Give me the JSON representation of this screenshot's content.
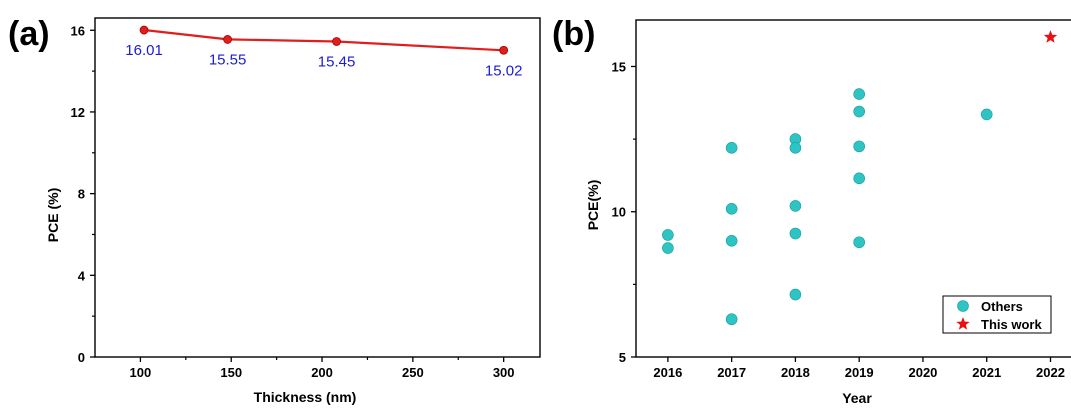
{
  "chart_data": [
    {
      "type": "line",
      "panel_label": "(a)",
      "xlabel": "Thickness (nm)",
      "ylabel": "PCE (%)",
      "xlim": [
        75,
        320
      ],
      "ylim": [
        0,
        16.6
      ],
      "xticks": [
        100,
        150,
        200,
        250,
        300
      ],
      "yticks": [
        0,
        4,
        8,
        12,
        16
      ],
      "grid": false,
      "color": "#e01e1e",
      "label_color": "#1b1bd6",
      "series": [
        {
          "x": [
            102,
            148,
            208,
            300
          ],
          "values": [
            16.01,
            15.55,
            15.45,
            15.02
          ],
          "data_labels": [
            "16.01",
            "15.55",
            "15.45",
            "15.02"
          ]
        }
      ]
    },
    {
      "type": "scatter",
      "panel_label": "(b)",
      "xlabel": "Year",
      "ylabel": "PCE(%)",
      "xlim": [
        2015.5,
        2022.4
      ],
      "ylim": [
        5,
        16.6
      ],
      "xticks": [
        2016,
        2017,
        2018,
        2019,
        2020,
        2021,
        2022
      ],
      "yticks": [
        5,
        10,
        15
      ],
      "grid": false,
      "legend_position": "bottom-right",
      "series": [
        {
          "name": "Others",
          "marker": "circle",
          "color": "#2ec4c4",
          "x": [
            2016,
            2016,
            2017,
            2017,
            2017,
            2017,
            2018,
            2018,
            2018,
            2018,
            2018,
            2019,
            2019,
            2019,
            2019,
            2019,
            2021
          ],
          "y": [
            9.2,
            8.75,
            12.2,
            10.1,
            9.0,
            6.3,
            12.5,
            12.2,
            10.2,
            9.25,
            7.15,
            14.05,
            13.45,
            12.25,
            11.15,
            8.95,
            13.35
          ]
        },
        {
          "name": "This work",
          "marker": "star",
          "color": "#e81010",
          "x": [
            2022
          ],
          "y": [
            16.01
          ]
        }
      ]
    }
  ]
}
